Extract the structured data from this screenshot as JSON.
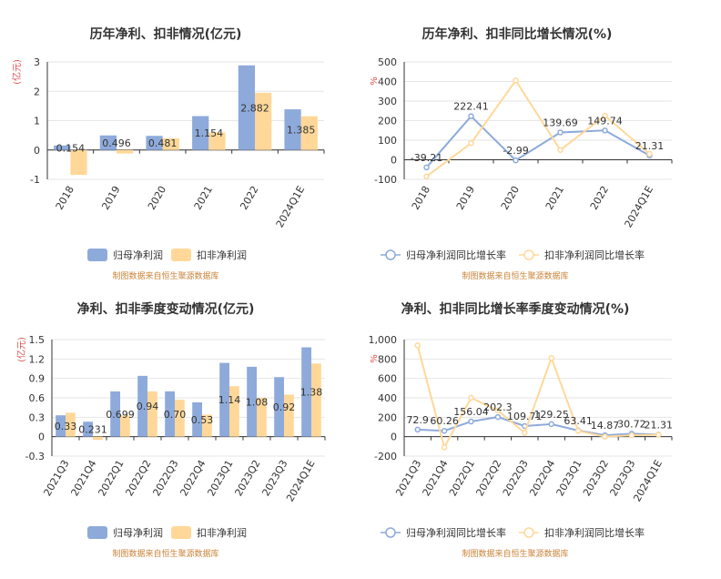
{
  "colors": {
    "series1": "#8eaadb",
    "series2": "#ffd899",
    "grid": "#e6e6e6",
    "axis": "#333333",
    "unit": "#e05050",
    "source": "#c8843a"
  },
  "source_note": "制图数据来自恒生聚源数据库",
  "chart_data": [
    {
      "id": "annual-profit",
      "type": "bar",
      "title": "历年净利、扣非情况(亿元)",
      "unit_label": "(亿元)",
      "categories": [
        "2018",
        "2019",
        "2020",
        "2021",
        "2022",
        "2024Q1E"
      ],
      "ylim": [
        -1,
        3
      ],
      "yticks": [
        "-1",
        "0",
        "1",
        "2",
        "3"
      ],
      "series": [
        {
          "name": "归母净利润",
          "values": [
            0.154,
            0.496,
            0.481,
            1.154,
            2.882,
            1.385
          ],
          "labels": [
            "0.154",
            "0.496",
            "0.481",
            "1.154",
            "2.882",
            "1.385"
          ]
        },
        {
          "name": "扣非净利润",
          "values": [
            -0.85,
            -0.12,
            0.4,
            0.6,
            1.95,
            1.15
          ]
        }
      ],
      "legend": "bottom",
      "grid": true
    },
    {
      "id": "annual-growth",
      "type": "line",
      "title": "历年净利、扣非同比增长情况(%)",
      "unit_label": "%",
      "categories": [
        "2018",
        "2019",
        "2020",
        "2021",
        "2022",
        "2024Q1E"
      ],
      "ylim": [
        -100,
        500
      ],
      "yticks": [
        "-100",
        "0",
        "100",
        "200",
        "300",
        "400",
        "500"
      ],
      "series": [
        {
          "name": "归母净利润同比增长率",
          "values": [
            -39.21,
            222.41,
            -2.99,
            139.69,
            149.74,
            21.31
          ],
          "labels": [
            "-39.21",
            "222.41",
            "-2.99",
            "139.69",
            "149.74",
            "21.31"
          ]
        },
        {
          "name": "扣非净利润同比增长率",
          "values": [
            -85,
            85,
            405,
            50,
            225,
            30
          ]
        }
      ],
      "legend": "bottom",
      "grid": true
    },
    {
      "id": "quarterly-profit",
      "type": "bar",
      "title": "净利、扣非季度变动情况(亿元)",
      "unit_label": "(亿元)",
      "categories": [
        "2021Q3",
        "2021Q4",
        "2022Q1",
        "2022Q2",
        "2022Q3",
        "2022Q4",
        "2023Q1",
        "2023Q2",
        "2023Q3",
        "2024Q1E"
      ],
      "ylim": [
        -0.3,
        1.5
      ],
      "yticks": [
        "-0.3",
        "0",
        "0.3",
        "0.6",
        "0.9",
        "1.2",
        "1.5"
      ],
      "series": [
        {
          "name": "归母净利润",
          "values": [
            0.33,
            0.231,
            0.699,
            0.94,
            0.7,
            0.53,
            1.14,
            1.08,
            0.92,
            1.38
          ],
          "labels": [
            "0.33",
            "0.231",
            "0.699",
            "0.94",
            "0.70",
            "0.53",
            "1.14",
            "1.08",
            "0.92",
            "1.38"
          ]
        },
        {
          "name": "扣非净利润",
          "values": [
            0.37,
            -0.05,
            0.33,
            0.7,
            0.57,
            0.34,
            0.78,
            0.6,
            0.65,
            1.13
          ]
        }
      ],
      "legend": "bottom",
      "grid": true
    },
    {
      "id": "quarterly-growth",
      "type": "line",
      "title": "净利、扣非同比增长率季度变动情况(%)",
      "unit_label": "%",
      "categories": [
        "2021Q3",
        "2021Q4",
        "2022Q1",
        "2022Q2",
        "2022Q3",
        "2022Q4",
        "2023Q1",
        "2023Q2",
        "2023Q3",
        "2024Q1E"
      ],
      "ylim": [
        -200,
        1000
      ],
      "yticks": [
        "-200",
        "0",
        "200",
        "400",
        "600",
        "800",
        "1,000"
      ],
      "series": [
        {
          "name": "归母净利润同比增长率",
          "values": [
            72.9,
            60.26,
            156.04,
            202.3,
            109.71,
            129.25,
            63.41,
            14.87,
            30.72,
            21.31
          ],
          "labels": [
            "72.9",
            "60.26",
            "156.04",
            "202.3",
            "109.71",
            "129.25",
            "63.41",
            "14.87",
            "30.72",
            "21.31"
          ]
        },
        {
          "name": "扣非净利润同比增长率",
          "values": [
            940,
            -110,
            400,
            270,
            40,
            810,
            60,
            0,
            15,
            20
          ]
        }
      ],
      "legend": "bottom",
      "grid": true
    }
  ]
}
